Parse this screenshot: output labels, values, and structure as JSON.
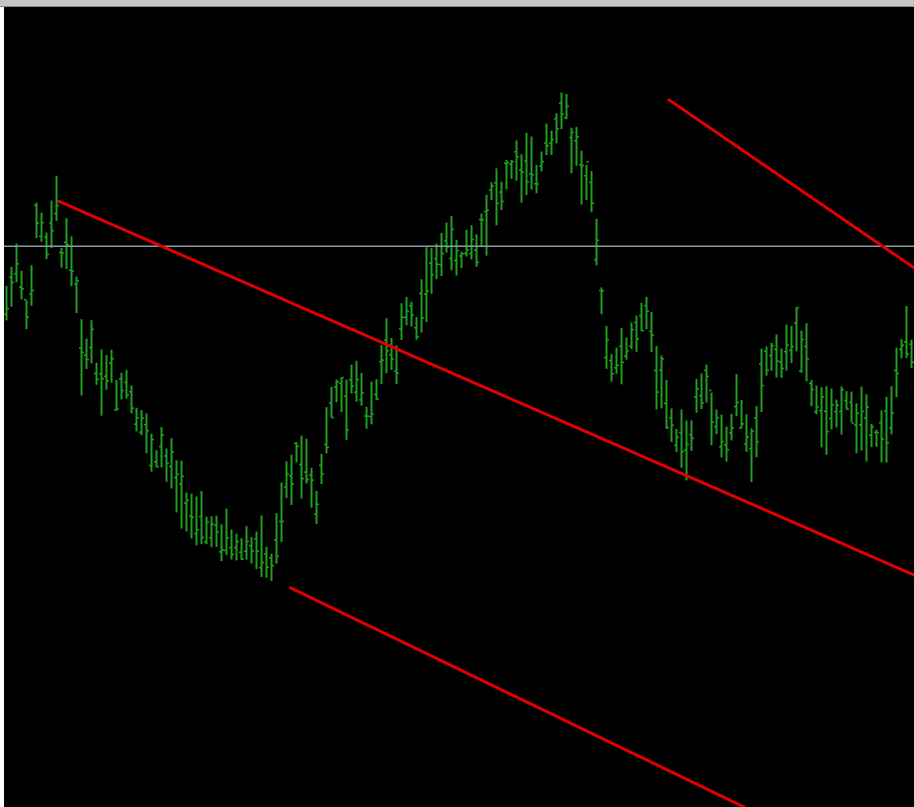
{
  "window": {
    "background_color": "#000000",
    "frame_color": "#c4c4c4"
  },
  "chart_data": {
    "type": "bar",
    "subtype": "ohlc-price-bars",
    "title": "",
    "xlabel": "",
    "ylabel": "",
    "grid": false,
    "bar_color": "#1f9e1f",
    "channel_color": "#e00000",
    "horizontal_line_color": "#8a9aa8",
    "x_range": [
      0,
      182
    ],
    "y_range": [
      0,
      100
    ],
    "horizontal_line_level": 70.1,
    "series": [
      {
        "values": [
          62.5,
          65.9,
          67.9,
          64.8,
          62.2,
          64.4,
          73.2,
          72.3,
          69.9,
          72.5,
          75.4,
          68.9,
          70.6,
          68.2,
          64.2,
          56.1,
          57.0,
          58.2,
          54.3,
          53.7,
          54.4,
          55.1,
          50.9,
          52.8,
          53.1,
          51.0,
          48.9,
          48.0,
          46.3,
          44.4,
          43.6,
          44.9,
          42.4,
          42.7,
          40.2,
          39.7,
          37.8,
          36.4,
          34.8,
          35.4,
          34.4,
          34.8,
          34.1,
          32.4,
          33.7,
          32.9,
          32.3,
          32.1,
          33.1,
          32.0,
          32.3,
          32.0,
          30.5,
          29.8,
          33.0,
          36.4,
          40.4,
          40.9,
          44.5,
          43.1,
          43.1,
          40.5,
          37.9,
          42.5,
          46.9,
          50.1,
          52.1,
          51.3,
          49.4,
          53.0,
          52.9,
          52.5,
          48.8,
          50.9,
          52.0,
          55.8,
          57.2,
          56.2,
          54.5,
          60.6,
          62.2,
          62.0,
          59.8,
          63.0,
          65.5,
          66.8,
          67.6,
          69.4,
          71.6,
          69.9,
          68.6,
          68.3,
          70.5,
          70.6,
          69.7,
          72.7,
          73.6,
          77.1,
          76.5,
          76.1,
          79.1,
          79.7,
          81.0,
          78.2,
          80.3,
          79.3,
          78.7,
          80.7,
          84.0,
          83.4,
          85.0,
          86.5,
          87.2,
          82.8,
          82.5,
          79.3,
          78.2,
          76.6,
          69.6,
          63.8,
          57.6,
          55.4,
          55.4,
          56.3,
          57.3,
          58.4,
          59.4,
          60.6,
          62.2,
          59.4,
          53.7,
          54.0,
          49.4,
          47.5,
          45.8,
          46.0,
          45.0,
          46.0,
          51.5,
          51.6,
          53.0,
          49.7,
          48.7,
          46.2,
          45.3,
          47.3,
          51.1,
          48.7,
          46.3,
          44.9,
          47.8,
          53.4,
          55.6,
          56.4,
          57.0,
          55.6,
          56.4,
          58.5,
          60.5,
          56.4,
          56.2,
          51.9,
          50.6,
          49.2,
          48.2,
          48.7,
          49.1,
          50.5,
          50.8,
          49.4,
          48.3,
          49.0,
          48.2,
          47.0,
          46.2,
          47.0,
          47.4,
          48.9,
          54.7,
          57.0,
          58.3,
          56.6,
          56.4,
          57.9
        ]
      }
    ],
    "channel_lines": [
      {
        "name": "upper",
        "from": {
          "x": 133.0,
          "y": 88.4
        },
        "to": {
          "x": 182.0,
          "y": 67.4
        }
      },
      {
        "name": "middle",
        "from": {
          "x": 11.0,
          "y": 75.7
        },
        "to": {
          "x": 182.0,
          "y": 29.0
        }
      },
      {
        "name": "lower",
        "from": {
          "x": 57.3,
          "y": 27.4
        },
        "to": {
          "x": 148.0,
          "y": 0.0
        }
      }
    ]
  }
}
